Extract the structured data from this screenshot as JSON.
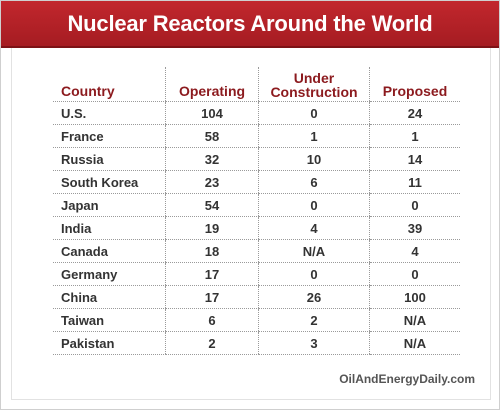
{
  "title": "Nuclear Reactors Around the World",
  "source": "OilAndEnergyDaily.com",
  "colors": {
    "banner": "#b32228",
    "header_text": "#8c1a1e",
    "body_text": "#333333"
  },
  "chart_data": {
    "type": "table",
    "title": "Nuclear Reactors Around the World",
    "columns": [
      "Country",
      "Operating",
      "Under Construction",
      "Proposed"
    ],
    "rows": [
      [
        "U.S.",
        "104",
        "0",
        "24"
      ],
      [
        "France",
        "58",
        "1",
        "1"
      ],
      [
        "Russia",
        "32",
        "10",
        "14"
      ],
      [
        "South Korea",
        "23",
        "6",
        "11"
      ],
      [
        "Japan",
        "54",
        "0",
        "0"
      ],
      [
        "India",
        "19",
        "4",
        "39"
      ],
      [
        "Canada",
        "18",
        "N/A",
        "4"
      ],
      [
        "Germany",
        "17",
        "0",
        "0"
      ],
      [
        "China",
        "17",
        "26",
        "100"
      ],
      [
        "Taiwan",
        "6",
        "2",
        "N/A"
      ],
      [
        "Pakistan",
        "2",
        "3",
        "N/A"
      ]
    ]
  }
}
